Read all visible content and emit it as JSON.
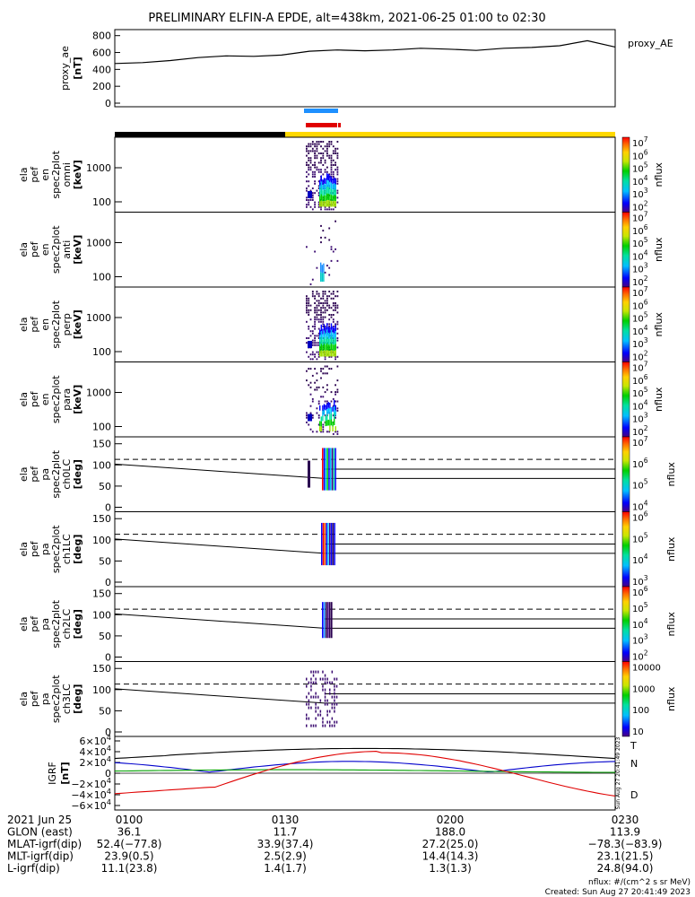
{
  "title": "PRELIMINARY ELFIN-A EPDE, alt=438km, 2021-06-25 01:00 to 02:30",
  "chart_data": {
    "type": "line",
    "x_range": [
      "01:00",
      "02:30"
    ],
    "panels": [
      {
        "id": "ae",
        "ylabel_lines": [
          "proxy_ae",
          "[nT]"
        ],
        "yticks": [
          "800",
          "600",
          "400",
          "200",
          "0"
        ],
        "ylim": [
          0,
          850
        ],
        "legend": "proxy_AE",
        "series": [
          {
            "name": "proxy_AE",
            "x": [
              0,
              5,
              10,
              15,
              20,
              25,
              30,
              35,
              40,
              45,
              50,
              55,
              60,
              65,
              70,
              75,
              80,
              85,
              90
            ],
            "values": [
              470,
              480,
              505,
              540,
              560,
              555,
              570,
              615,
              630,
              620,
              630,
              650,
              640,
              625,
              650,
              660,
              680,
              740,
              665
            ]
          }
        ]
      },
      {
        "id": "omni",
        "ylabel_lines": [
          "ela",
          "pef",
          "en",
          "spec2plot",
          "omni",
          "[keV]"
        ],
        "yticks": [
          "1000",
          "100"
        ],
        "cbar_ticks": [
          "10^7",
          "10^6",
          "10^5",
          "10^4",
          "10^3",
          "10^2"
        ],
        "cbar_label": "nflux"
      },
      {
        "id": "anti",
        "ylabel_lines": [
          "ela",
          "pef",
          "en",
          "spec2plot",
          "anti",
          "[keV]"
        ],
        "yticks": [
          "1000",
          "100"
        ],
        "cbar_ticks": [
          "10^7",
          "10^6",
          "10^5",
          "10^4",
          "10^3",
          "10^2"
        ],
        "cbar_label": "nflux"
      },
      {
        "id": "perp",
        "ylabel_lines": [
          "ela",
          "pef",
          "en",
          "spec2plot",
          "perp",
          "[keV]"
        ],
        "yticks": [
          "1000",
          "100"
        ],
        "cbar_ticks": [
          "10^7",
          "10^6",
          "10^5",
          "10^4",
          "10^3",
          "10^2"
        ],
        "cbar_label": "nflux"
      },
      {
        "id": "para",
        "ylabel_lines": [
          "ela",
          "pef",
          "en",
          "spec2plot",
          "para",
          "[keV]"
        ],
        "yticks": [
          "1000",
          "100"
        ],
        "cbar_ticks": [
          "10^7",
          "10^6",
          "10^5",
          "10^4",
          "10^3",
          "10^2"
        ],
        "cbar_label": "nflux"
      },
      {
        "id": "ch0",
        "ylabel_lines": [
          "ela",
          "pef",
          "pa",
          "spec2plot",
          "ch0LC",
          "[deg]"
        ],
        "yticks": [
          "150",
          "100",
          "50",
          "0"
        ],
        "cbar_ticks": [
          "10^7",
          "10^6",
          "10^5",
          "10^4"
        ],
        "cbar_label": "nflux"
      },
      {
        "id": "ch1",
        "ylabel_lines": [
          "ela",
          "pef",
          "pa",
          "spec2plot",
          "ch1LC",
          "[deg]"
        ],
        "yticks": [
          "150",
          "100",
          "50",
          "0"
        ],
        "cbar_ticks": [
          "10^6",
          "10^5",
          "10^4",
          "10^3"
        ],
        "cbar_label": "nflux"
      },
      {
        "id": "ch2",
        "ylabel_lines": [
          "ela",
          "pef",
          "pa",
          "spec2plot",
          "ch2LC",
          "[deg]"
        ],
        "yticks": [
          "150",
          "100",
          "50",
          "0"
        ],
        "cbar_ticks": [
          "10^6",
          "10^5",
          "10^4",
          "10^3",
          "10^2"
        ],
        "cbar_label": "nflux"
      },
      {
        "id": "ch3",
        "ylabel_lines": [
          "ela",
          "pef",
          "pa",
          "spec2plot",
          "ch3LC",
          "[deg]"
        ],
        "yticks": [
          "150",
          "100",
          "50",
          "0"
        ],
        "cbar_ticks": [
          "10000",
          "1000",
          "100",
          "10"
        ],
        "cbar_label": "nflux"
      },
      {
        "id": "igrf",
        "ylabel_lines": [
          "IGRF",
          "[nT]"
        ],
        "yticks": [
          "6×10^4",
          "4×10^4",
          "2×10^4",
          "0",
          "−2×10^4",
          "−4×10^4",
          "−6×10^4"
        ],
        "legend": [
          "T",
          "N",
          "D"
        ],
        "legend_colors": [
          "#000000",
          "#00a000",
          "#e00000"
        ],
        "side_note": "Sun Aug 27 20:41:49 2023"
      }
    ]
  },
  "time_rows": [
    {
      "label": "2021 Jun 25",
      "values": [
        "0100",
        "0130",
        "0200",
        "0230"
      ]
    },
    {
      "label": "GLON (east)",
      "values": [
        "36.1",
        "11.7",
        "188.0",
        "113.9"
      ]
    },
    {
      "label": "MLAT-igrf(dip)",
      "values": [
        "52.4(−77.8)",
        "33.9(37.4)",
        "27.2(25.0)",
        "−78.3(−83.9)"
      ]
    },
    {
      "label": "MLT-igrf(dip)",
      "values": [
        "23.9(0.5)",
        "2.5(2.9)",
        "14.4(14.3)",
        "23.1(21.5)"
      ]
    },
    {
      "label": "L-igrf(dip)",
      "values": [
        "11.1(23.8)",
        "1.4(1.7)",
        "1.3(1.3)",
        "24.8(94.0)"
      ]
    }
  ],
  "footer": {
    "units": "nflux: #/(cm^2 s sr MeV)",
    "created": "Created: Sun Aug 27 20:41:49 2023"
  },
  "colors": {
    "black": "#000000",
    "yellow": "#ffd800",
    "blue": "#1e90ff",
    "red": "#e00000",
    "green": "#00a000"
  }
}
